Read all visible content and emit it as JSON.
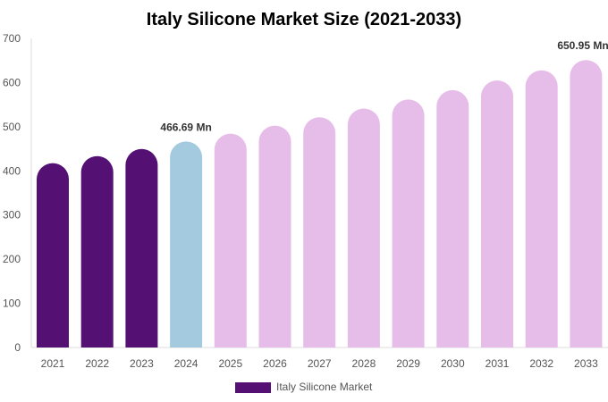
{
  "chart_data": {
    "type": "bar",
    "title": "Italy Silicone Market Size (2021-2033)",
    "categories": [
      "2021",
      "2022",
      "2023",
      "2024",
      "2025",
      "2026",
      "2027",
      "2028",
      "2029",
      "2030",
      "2031",
      "2032",
      "2033"
    ],
    "series": [
      {
        "name": "Italy Silicone Market",
        "values": [
          417.6,
          433.4,
          449.7,
          466.69,
          484.3,
          502.6,
          521.5,
          541.2,
          561.6,
          582.8,
          604.8,
          627.6,
          650.95
        ]
      }
    ],
    "bar_colors": [
      "#541173",
      "#541173",
      "#541173",
      "#a3cadf",
      "#e6bde9",
      "#e6bde9",
      "#e6bde9",
      "#e6bde9",
      "#e6bde9",
      "#e6bde9",
      "#e6bde9",
      "#e6bde9",
      "#e6bde9"
    ],
    "legend_color": "#541173",
    "annotations": [
      {
        "category": "2024",
        "text": "466.69 Mn"
      },
      {
        "category": "2033",
        "text": "650.95 Mn"
      }
    ],
    "ylim": [
      0,
      700
    ],
    "yticks": [
      0,
      100,
      200,
      300,
      400,
      500,
      600,
      700
    ],
    "grid": false,
    "legend_position": "bottom"
  }
}
